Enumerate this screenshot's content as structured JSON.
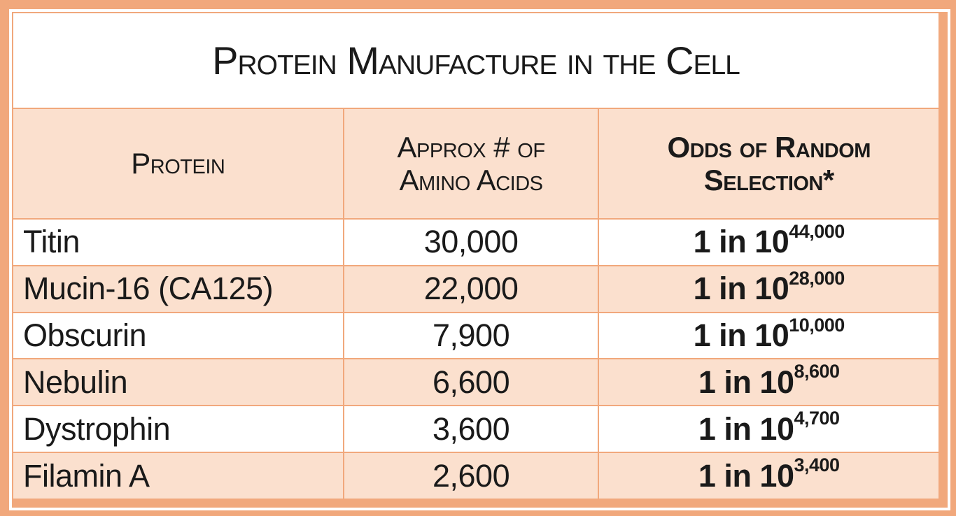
{
  "title": "Protein Manufacture in the Cell",
  "header": {
    "protein": "Protein",
    "amino_line1": "Approx # of",
    "amino_line2": "Amino Acids",
    "odds_line1": "Odds of Random",
    "odds_line2": "Selection*"
  },
  "rows": [
    {
      "protein": "Titin",
      "amino_acids": "30,000",
      "odds_base": "1 in 10",
      "odds_exp": "44,000"
    },
    {
      "protein": "Mucin-16 (CA125)",
      "amino_acids": "22,000",
      "odds_base": "1 in 10",
      "odds_exp": "28,000"
    },
    {
      "protein": "Obscurin",
      "amino_acids": "7,900",
      "odds_base": "1 in 10",
      "odds_exp": "10,000"
    },
    {
      "protein": "Nebulin",
      "amino_acids": "6,600",
      "odds_base": "1 in 10",
      "odds_exp": "8,600"
    },
    {
      "protein": "Dystrophin",
      "amino_acids": "3,600",
      "odds_base": "1 in 10",
      "odds_exp": "4,700"
    },
    {
      "protein": "Filamin A",
      "amino_acids": "2,600",
      "odds_base": "1 in 10",
      "odds_exp": "3,400"
    }
  ],
  "colors": {
    "frame": "#F1A87C",
    "grid_line": "#F1A87C",
    "row_fill": "#FBE0CE",
    "row_alt_fill": "#FFFFFF",
    "text": "#1A1A1A"
  },
  "chart_data": {
    "type": "table",
    "title": "Protein Manufacture in the Cell",
    "columns": [
      "Protein",
      "Approx # of Amino Acids",
      "Odds of Random Selection*"
    ],
    "rows": [
      [
        "Titin",
        "30,000",
        "1 in 10^44,000"
      ],
      [
        "Mucin-16 (CA125)",
        "22,000",
        "1 in 10^28,000"
      ],
      [
        "Obscurin",
        "7,900",
        "1 in 10^10,000"
      ],
      [
        "Nebulin",
        "6,600",
        "1 in 10^8,600"
      ],
      [
        "Dystrophin",
        "3,600",
        "1 in 10^4,700"
      ],
      [
        "Filamin A",
        "2,600",
        "1 in 10^3,400"
      ]
    ]
  }
}
